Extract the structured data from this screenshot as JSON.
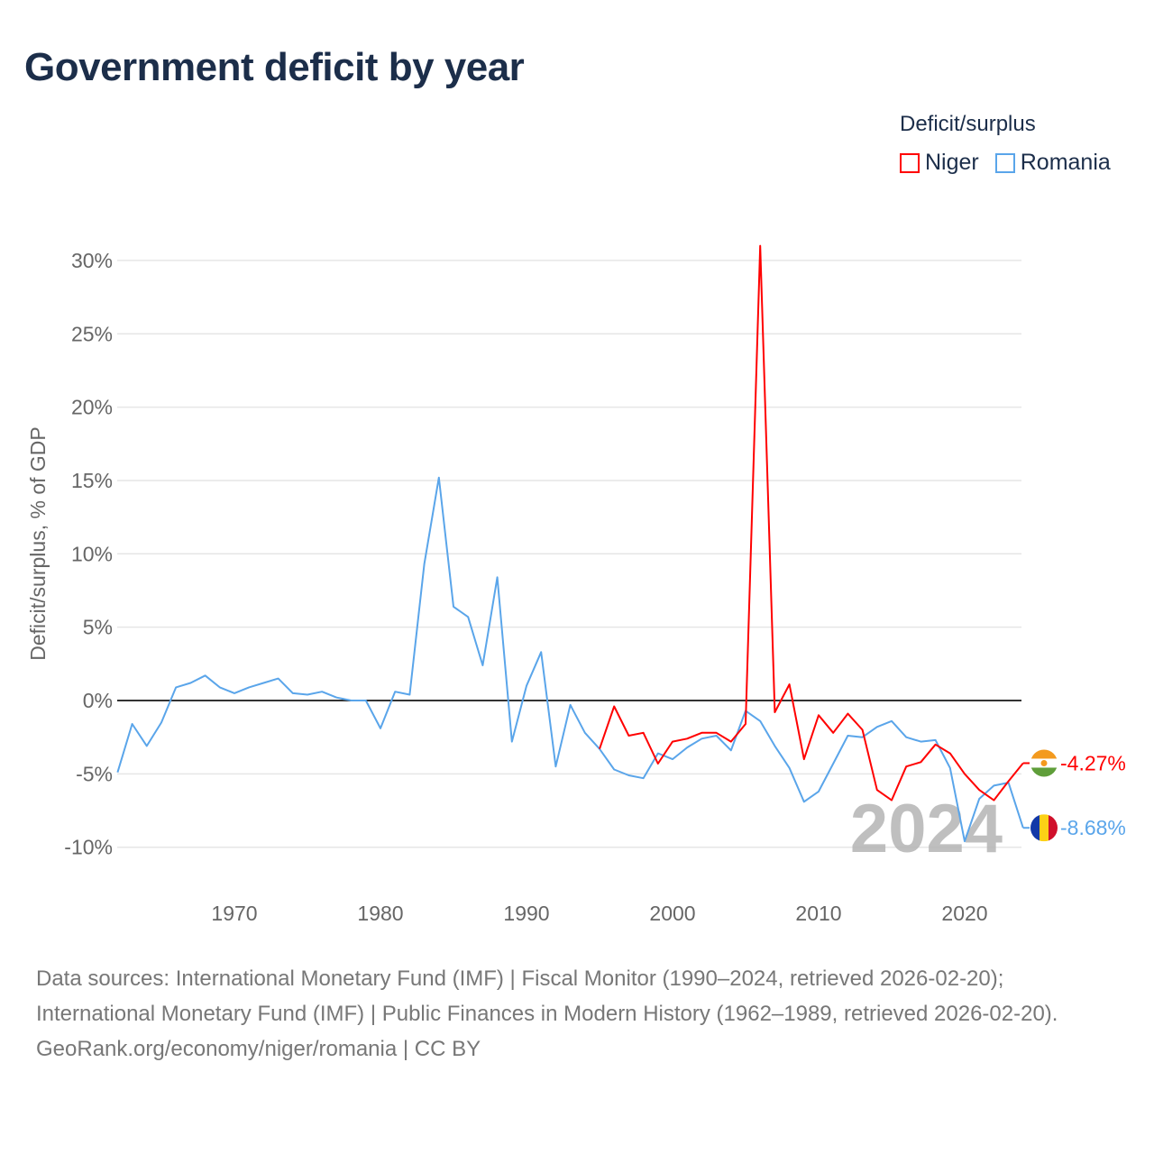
{
  "title": "Government deficit by year",
  "legend": {
    "title": "Deficit/surplus",
    "items": [
      {
        "name": "Niger",
        "color": "#ff0000"
      },
      {
        "name": "Romania",
        "color": "#5aa5ea"
      }
    ]
  },
  "chart_data": {
    "type": "line",
    "title": "Government deficit by year",
    "ylabel": "Deficit/surplus, % of GDP",
    "xlabel": "",
    "xlim": [
      1962,
      2024
    ],
    "ylim": [
      -12,
      31
    ],
    "xticks": [
      1970,
      1980,
      1990,
      2000,
      2010,
      2020
    ],
    "yticks": [
      30,
      25,
      20,
      15,
      10,
      5,
      0,
      -5,
      -10
    ],
    "ytick_labels": [
      "30%",
      "25%",
      "20%",
      "15%",
      "10%",
      "5%",
      "0%",
      "-5%",
      "-10%"
    ],
    "xtick_labels": [
      "1970",
      "1980",
      "1990",
      "2000",
      "2010",
      "2020"
    ],
    "grid": true,
    "current_year_label": "2024",
    "series": [
      {
        "name": "Niger",
        "color": "#ff0000",
        "start_year": 1995,
        "end_label": "-4.27%",
        "values": [
          -3.3,
          -0.4,
          -2.4,
          -2.2,
          -4.3,
          -2.8,
          -2.6,
          -2.2,
          -2.2,
          -2.8,
          -1.6,
          31.0,
          -0.8,
          1.1,
          -4.0,
          -1.0,
          -2.2,
          -0.9,
          -2.0,
          -6.1,
          -6.8,
          -4.5,
          -4.2,
          -3.0,
          -3.6,
          -5.0,
          -6.1,
          -6.8,
          -5.5,
          -4.27
        ]
      },
      {
        "name": "Romania",
        "color": "#5aa5ea",
        "start_year": 1962,
        "end_label": "-8.68%",
        "values": [
          -4.9,
          -1.6,
          -3.1,
          -1.5,
          0.9,
          1.2,
          1.7,
          0.9,
          0.5,
          0.9,
          1.2,
          1.5,
          0.5,
          0.4,
          0.6,
          0.2,
          0,
          0,
          -1.9,
          0.6,
          0.4,
          9.3,
          15.2,
          6.4,
          5.7,
          2.4,
          8.4,
          -2.8,
          1.0,
          3.3,
          -4.5,
          -0.3,
          -2.2,
          -3.3,
          -4.7,
          -5.1,
          -5.3,
          -3.6,
          -4.0,
          -3.2,
          -2.6,
          -2.4,
          -3.4,
          -0.7,
          -1.4,
          -3.1,
          -4.6,
          -6.9,
          -6.2,
          -4.3,
          -2.4,
          -2.5,
          -1.8,
          -1.4,
          -2.5,
          -2.8,
          -2.7,
          -4.6,
          -9.6,
          -6.7,
          -5.8,
          -5.6,
          -8.68
        ]
      }
    ]
  },
  "footer": {
    "sources": "Data sources: International Monetary Fund (IMF) | Fiscal Monitor (1990–2024, retrieved 2026-02-20); International Monetary Fund (IMF) | Public Finances in Modern History (1962–1989, retrieved 2026-02-20).",
    "credit": "GeoRank.org/economy/niger/romania | CC BY"
  }
}
